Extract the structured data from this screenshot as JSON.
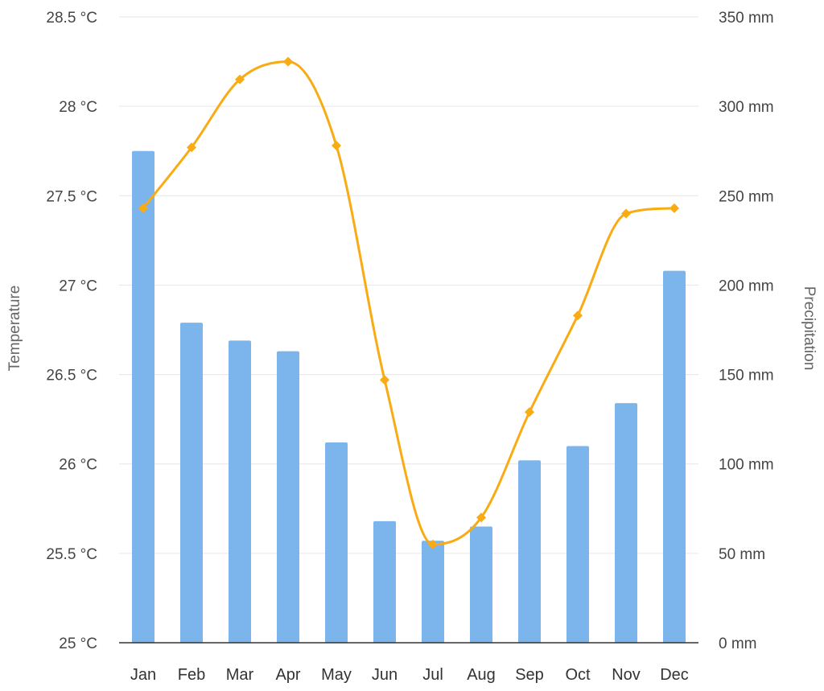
{
  "chart_data": {
    "type": "bar+line",
    "categories": [
      "Jan",
      "Feb",
      "Mar",
      "Apr",
      "May",
      "Jun",
      "Jul",
      "Aug",
      "Sep",
      "Oct",
      "Nov",
      "Dec"
    ],
    "series": [
      {
        "type": "bar",
        "axis": "right",
        "values": [
          275,
          179,
          169,
          163,
          112,
          68,
          57,
          65,
          102,
          110,
          134,
          208
        ],
        "color": "#7cb5ec"
      },
      {
        "type": "line",
        "axis": "left",
        "smooth": true,
        "marker": "diamond",
        "values": [
          27.43,
          27.77,
          28.15,
          28.25,
          27.78,
          26.47,
          25.55,
          25.7,
          26.29,
          26.83,
          27.4,
          27.43
        ],
        "color": "#f9ab14"
      }
    ],
    "y_left": {
      "title": "Temperature",
      "unit": " °C",
      "min": 25,
      "max": 28.5,
      "ticks": [
        25,
        25.5,
        26,
        26.5,
        27,
        27.5,
        28,
        28.5
      ],
      "tick_labels": [
        "25 °C",
        "25.5 °C",
        "26 °C",
        "26.5 °C",
        "27 °C",
        "27.5 °C",
        "28 °C",
        "28.5 °C"
      ]
    },
    "y_right": {
      "title": "Precipitation",
      "unit": " mm",
      "min": 0,
      "max": 350,
      "ticks": [
        0,
        50,
        100,
        150,
        200,
        250,
        300,
        350
      ],
      "tick_labels": [
        "0 mm",
        "50 mm",
        "100 mm",
        "150 mm",
        "200 mm",
        "250 mm",
        "300 mm",
        "350 mm"
      ]
    },
    "grid": true,
    "colors": {
      "bar": "#7cb5ec",
      "line": "#f9ab14",
      "grid": "#e6e6e6",
      "baseline": "#333333"
    }
  }
}
